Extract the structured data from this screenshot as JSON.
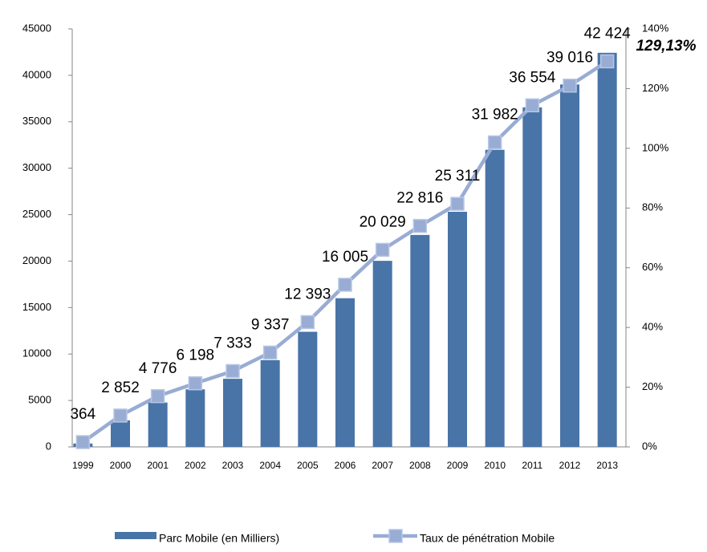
{
  "chart_data": {
    "type": "bar",
    "categories": [
      "1999",
      "2000",
      "2001",
      "2002",
      "2003",
      "2004",
      "2005",
      "2006",
      "2007",
      "2008",
      "2009",
      "2010",
      "2011",
      "2012",
      "2013"
    ],
    "series": [
      {
        "name": "Parc Mobile (en Milliers)",
        "color": "#4874a8",
        "type": "bar",
        "values": [
          364,
          2852,
          4776,
          6198,
          7333,
          9337,
          12393,
          16005,
          20029,
          22816,
          25311,
          31982,
          36554,
          39016,
          42424
        ],
        "value_labels": [
          "364",
          "2 852",
          "4 776",
          "6 198",
          "7 333",
          "9 337",
          "12 393",
          "16 005",
          "20 029",
          "22 816",
          "25 311",
          "31 982",
          "36 554",
          "39 016",
          "42 424"
        ]
      },
      {
        "name": "Taux de pénétration Mobile",
        "color": "#98acd4",
        "type": "line",
        "axis": "y2",
        "values": [
          1.6,
          10.5,
          17,
          21.3,
          25.4,
          31.6,
          41.8,
          54.3,
          66,
          74,
          81.4,
          102,
          114.4,
          121,
          129.13
        ],
        "value_labels": [
          null,
          null,
          null,
          null,
          null,
          null,
          null,
          null,
          null,
          null,
          null,
          null,
          null,
          null,
          "129,13%"
        ]
      }
    ],
    "ylim": [
      0,
      45000
    ],
    "yticks": [
      0,
      5000,
      10000,
      15000,
      20000,
      25000,
      30000,
      35000,
      40000,
      45000
    ],
    "y2lim": [
      0,
      140
    ],
    "y2ticks": [
      {
        "value": 0,
        "label": "0%"
      },
      {
        "value": 20,
        "label": "20%"
      },
      {
        "value": 40,
        "label": "40%"
      },
      {
        "value": 60,
        "label": "60%"
      },
      {
        "value": 80,
        "label": "80%"
      },
      {
        "value": 100,
        "label": "100%"
      },
      {
        "value": 120,
        "label": "120%"
      },
      {
        "value": 140,
        "label": "140%"
      }
    ],
    "legend": "bottom"
  }
}
